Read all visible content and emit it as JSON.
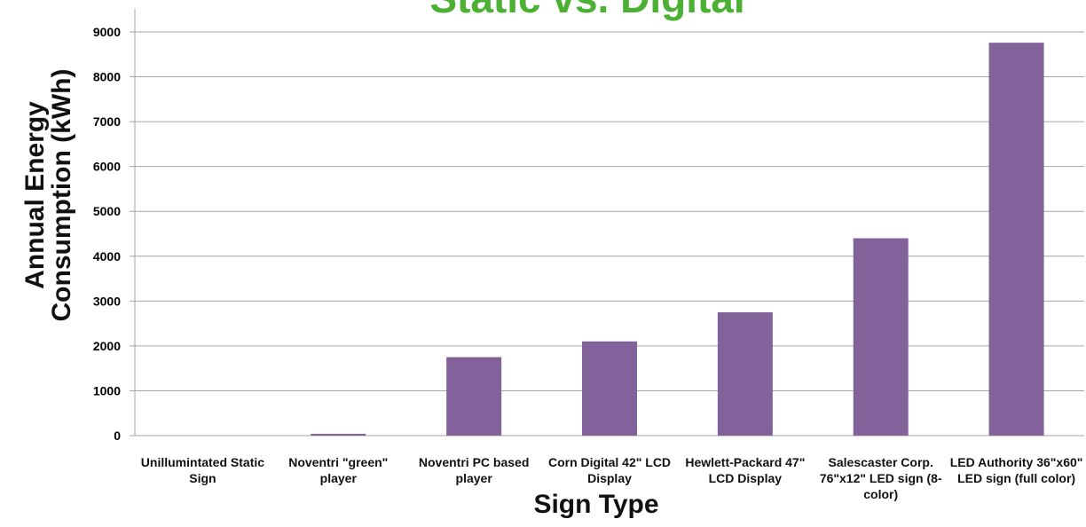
{
  "chart_data": {
    "type": "bar",
    "title": "Static vs. Digital",
    "x_label": "Sign Type",
    "y_label": "Annual Energy Consumption (kWh)",
    "categories": [
      "Unillumintated Static Sign",
      "Noventri \"green\" player",
      "Noventri PC based player",
      "Corn Digital 42\" LCD Display",
      "Hewlett-Packard 47\" LCD Display",
      "Salescaster Corp. 76\"x12\" LED sign  (8-color)",
      "LED Authority 36\"x60\" LED sign (full color)"
    ],
    "values": [
      0,
      40,
      1750,
      2100,
      2750,
      4400,
      8760
    ],
    "color": "#82629a",
    "ylim": [
      0,
      9000
    ],
    "yticks": [
      0,
      1000,
      2000,
      3000,
      4000,
      5000,
      6000,
      7000,
      8000,
      9000
    ],
    "grid": true
  }
}
